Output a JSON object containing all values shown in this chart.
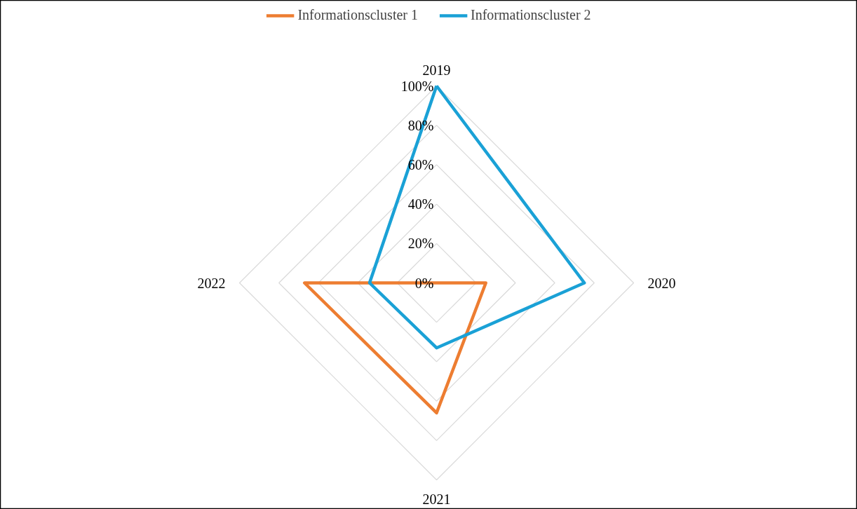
{
  "chart_data": {
    "type": "radar",
    "categories": [
      "2019",
      "2020",
      "2021",
      "2022"
    ],
    "ylim": [
      0,
      100
    ],
    "yticks": [
      {
        "value": 0,
        "label": "0%"
      },
      {
        "value": 20,
        "label": "20%"
      },
      {
        "value": 40,
        "label": "40%"
      },
      {
        "value": 60,
        "label": "60%"
      },
      {
        "value": 80,
        "label": "80%"
      },
      {
        "value": 100,
        "label": "100%"
      }
    ],
    "grid": true,
    "legend": "top",
    "line_style": "solid",
    "series": [
      {
        "name": "Informationscluster 1",
        "color": "#ed7d31",
        "values": [
          0,
          25,
          66,
          67
        ]
      },
      {
        "name": "Informationscluster 2",
        "color": "#1aa1d6",
        "values": [
          100,
          75,
          33,
          34
        ]
      }
    ]
  }
}
